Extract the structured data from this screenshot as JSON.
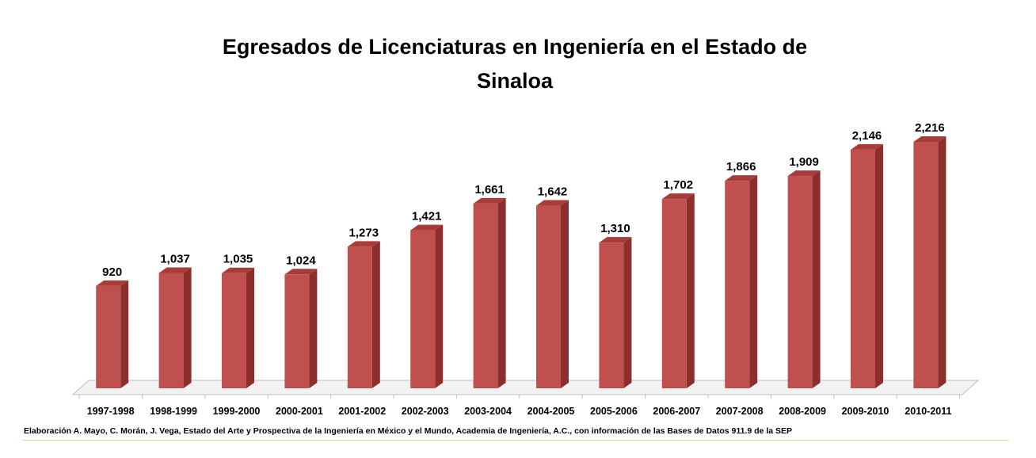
{
  "chart_data": {
    "type": "bar",
    "title_line1": "Egresados de Licenciaturas en Ingeniería en el Estado de",
    "title_line2": "Sinaloa",
    "categories": [
      "1997-1998",
      "1998-1999",
      "1999-2000",
      "2000-2001",
      "2001-2002",
      "2002-2003",
      "2003-2004",
      "2004-2005",
      "2005-2006",
      "2006-2007",
      "2007-2008",
      "2008-2009",
      "2009-2010",
      "2010-2011"
    ],
    "values": [
      920,
      1037,
      1035,
      1024,
      1273,
      1421,
      1661,
      1642,
      1310,
      1702,
      1866,
      1909,
      2146,
      2216
    ],
    "value_labels": [
      "920",
      "1,037",
      "1,035",
      "1,024",
      "1,273",
      "1,421",
      "1,661",
      "1,642",
      "1,310",
      "1,702",
      "1,866",
      "1,909",
      "2,146",
      "2,216"
    ],
    "ylim": [
      0,
      2216
    ],
    "grid": false,
    "legend": "none",
    "style": "3d-column",
    "colors": {
      "bar_front": "#c0504d",
      "bar_side": "#8c2f2c",
      "bar_top": "#a83c39",
      "floor": "#d9d9d9"
    }
  },
  "source": "Elaboración A. Mayo, C. Morán, J. Vega, Estado del Arte y Prospectiva de la Ingeniería en México y el Mundo, Academia de Ingeniería, A.C., con información de las Bases de Datos  911.9  de la SEP"
}
